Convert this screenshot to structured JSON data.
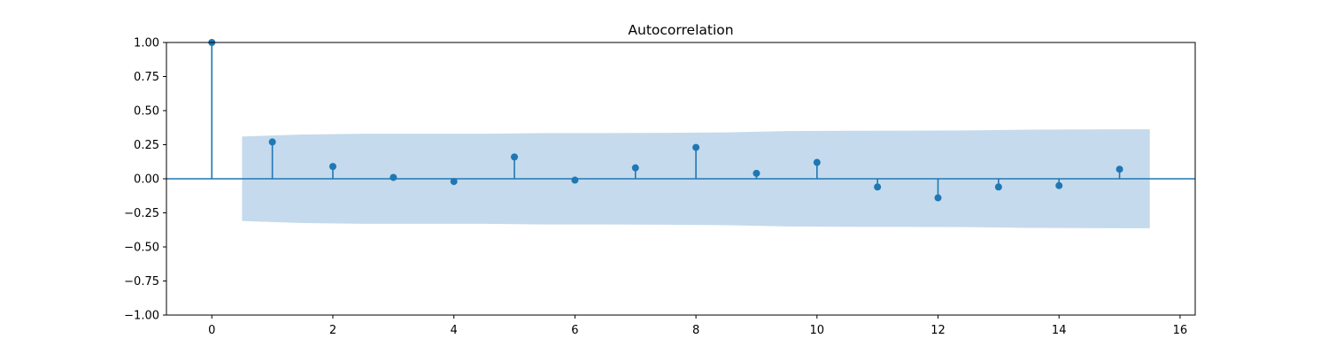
{
  "chart_data": {
    "type": "stem",
    "title": "Autocorrelation",
    "xlabel": "",
    "ylabel": "",
    "xlim": [
      -0.75,
      16.25
    ],
    "ylim": [
      -1.0,
      1.0
    ],
    "xticks": [
      0,
      2,
      4,
      6,
      8,
      10,
      12,
      14,
      16
    ],
    "yticks": [
      -1.0,
      -0.75,
      -0.5,
      -0.25,
      0.0,
      0.25,
      0.5,
      0.75,
      1.0
    ],
    "ytick_labels": [
      "−1.00",
      "−0.75",
      "−0.50",
      "−0.25",
      "0.00",
      "0.25",
      "0.50",
      "0.75",
      "1.00"
    ],
    "xtick_labels": [
      "0",
      "2",
      "4",
      "6",
      "8",
      "10",
      "12",
      "14",
      "16"
    ],
    "lags": [
      0,
      1,
      2,
      3,
      4,
      5,
      6,
      7,
      8,
      9,
      10,
      11,
      12,
      13,
      14,
      15
    ],
    "values": [
      1.0,
      0.27,
      0.09,
      0.01,
      -0.02,
      0.16,
      -0.01,
      0.08,
      0.23,
      0.04,
      0.12,
      -0.06,
      -0.14,
      -0.06,
      -0.05,
      0.07
    ],
    "confidence_band": {
      "x": [
        0.5,
        1.5,
        2.5,
        3.5,
        4.5,
        5.5,
        6.5,
        7.5,
        8.5,
        9.5,
        10.5,
        11.5,
        12.5,
        13.5,
        14.5,
        15.5
      ],
      "upper": [
        0.31,
        0.325,
        0.33,
        0.33,
        0.33,
        0.335,
        0.335,
        0.337,
        0.34,
        0.35,
        0.352,
        0.353,
        0.355,
        0.36,
        0.362,
        0.363
      ],
      "lower": [
        -0.31,
        -0.325,
        -0.33,
        -0.33,
        -0.33,
        -0.335,
        -0.335,
        -0.337,
        -0.34,
        -0.35,
        -0.352,
        -0.353,
        -0.355,
        -0.36,
        -0.362,
        -0.363
      ]
    },
    "grid": false,
    "colors": {
      "stem": "#1f77b4",
      "band": "#c5daec",
      "axes": "#000000"
    }
  }
}
